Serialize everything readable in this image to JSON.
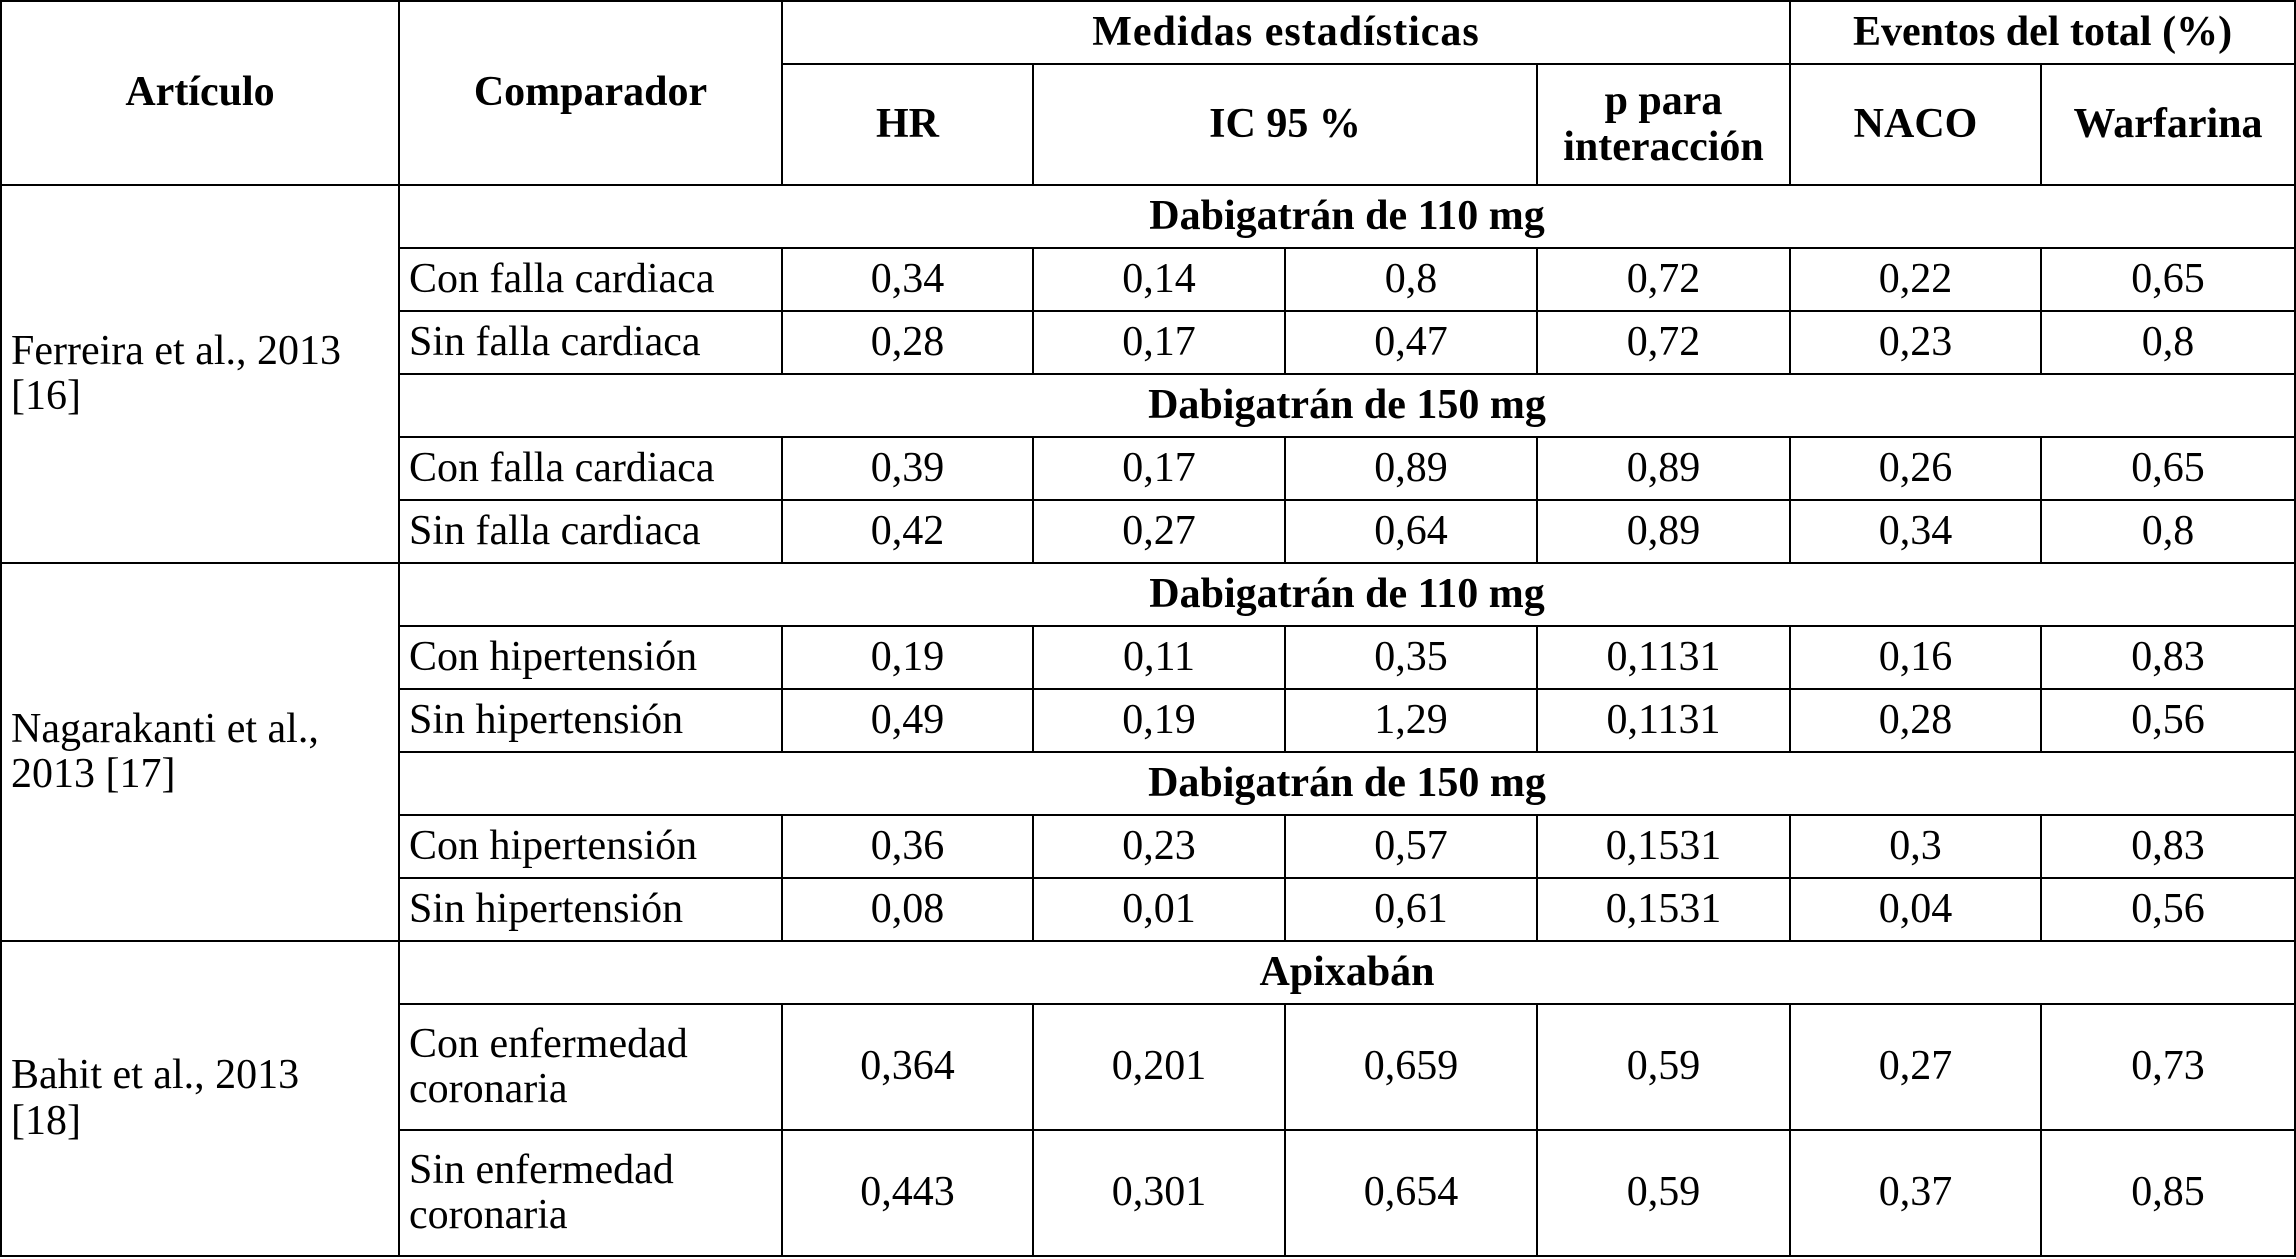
{
  "header": {
    "articulo": "Artículo",
    "comparador": "Comparador",
    "medidas": "Medidas estadísticas",
    "eventos": "Eventos del total (%)",
    "hr": "HR",
    "ic": "IC 95 %",
    "p_line1": "p para",
    "p_line2": "interacción",
    "naco": "NACO",
    "warfarina": "Warfarina"
  },
  "studies": [
    {
      "article_line1": "Ferreira et al., 2013",
      "article_line2": "[16]",
      "groups": [
        {
          "title": "Dabigatrán de 110 mg",
          "rows": [
            {
              "comp": "Con falla cardiaca",
              "hr": "0,34",
              "ic_low": "0,14",
              "ic_high": "0,8",
              "p": "0,72",
              "naco": "0,22",
              "warf": "0,65"
            },
            {
              "comp": "Sin falla cardiaca",
              "hr": "0,28",
              "ic_low": "0,17",
              "ic_high": "0,47",
              "p": "0,72",
              "naco": "0,23",
              "warf": "0,8"
            }
          ]
        },
        {
          "title": "Dabigatrán de 150 mg",
          "rows": [
            {
              "comp": "Con falla cardiaca",
              "hr": "0,39",
              "ic_low": "0,17",
              "ic_high": "0,89",
              "p": "0,89",
              "naco": "0,26",
              "warf": "0,65"
            },
            {
              "comp": "Sin falla cardiaca",
              "hr": "0,42",
              "ic_low": "0,27",
              "ic_high": "0,64",
              "p": "0,89",
              "naco": "0,34",
              "warf": "0,8"
            }
          ]
        }
      ]
    },
    {
      "article_line1": "Nagarakanti et al.,",
      "article_line2": "2013 [17]",
      "groups": [
        {
          "title": "Dabigatrán de 110 mg",
          "rows": [
            {
              "comp": "Con hipertensión",
              "hr": "0,19",
              "ic_low": "0,11",
              "ic_high": "0,35",
              "p": "0,1131",
              "naco": "0,16",
              "warf": "0,83"
            },
            {
              "comp": "Sin hipertensión",
              "hr": "0,49",
              "ic_low": "0,19",
              "ic_high": "1,29",
              "p": "0,1131",
              "naco": "0,28",
              "warf": "0,56"
            }
          ]
        },
        {
          "title": "Dabigatrán de 150 mg",
          "rows": [
            {
              "comp": "Con hipertensión",
              "hr": "0,36",
              "ic_low": "0,23",
              "ic_high": "0,57",
              "p": "0,1531",
              "naco": "0,3",
              "warf": "0,83"
            },
            {
              "comp": "Sin hipertensión",
              "hr": "0,08",
              "ic_low": "0,01",
              "ic_high": "0,61",
              "p": "0,1531",
              "naco": "0,04",
              "warf": "0,56"
            }
          ]
        }
      ]
    },
    {
      "article_line1": "Bahit et al., 2013",
      "article_line2": "[18]",
      "groups": [
        {
          "title": "Apixabán",
          "rows": [
            {
              "comp_line1": "Con enfermedad",
              "comp_line2": "coronaria",
              "hr": "0,364",
              "ic_low": "0,201",
              "ic_high": "0,659",
              "p": "0,59",
              "naco": "0,27",
              "warf": "0,73"
            },
            {
              "comp_line1": "Sin enfermedad",
              "comp_line2": "coronaria",
              "hr": "0,443",
              "ic_low": "0,301",
              "ic_high": "0,654",
              "p": "0,59",
              "naco": "0,37",
              "warf": "0,85"
            }
          ]
        }
      ]
    }
  ]
}
